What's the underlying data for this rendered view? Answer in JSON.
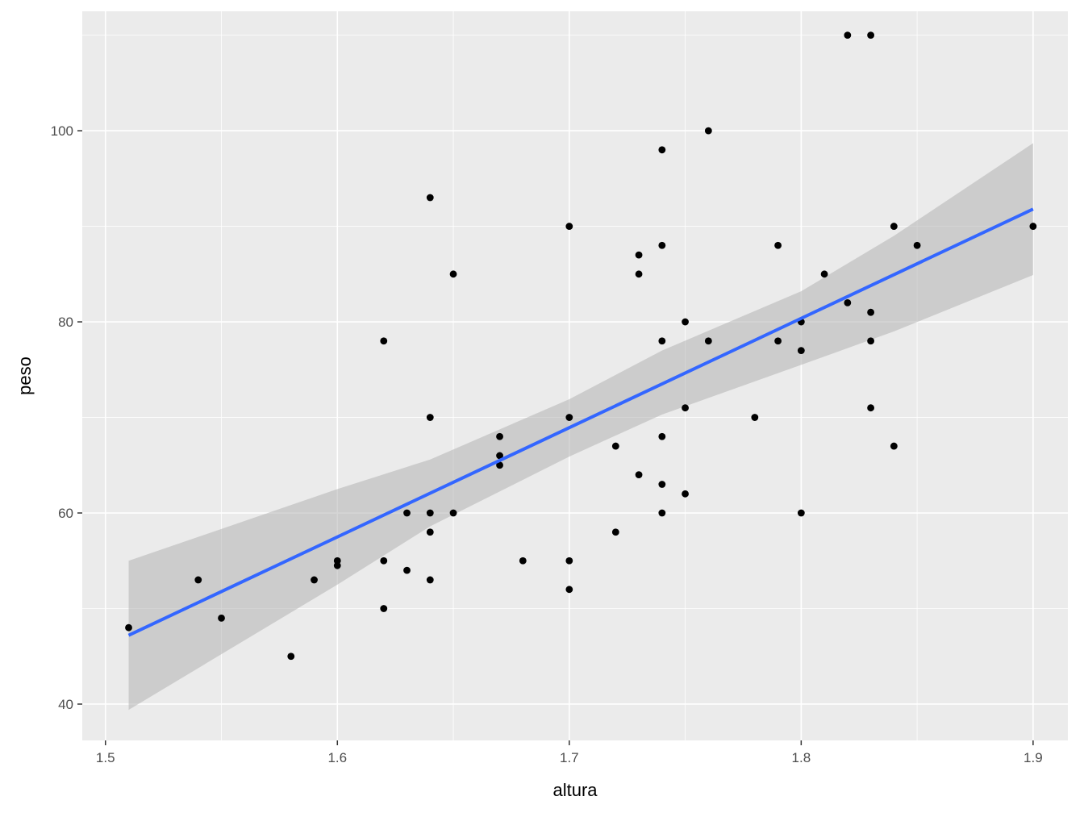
{
  "chart_data": {
    "type": "scatter",
    "xlabel": "altura",
    "ylabel": "peso",
    "xlim": [
      1.49,
      1.915
    ],
    "ylim": [
      36.2,
      112.5
    ],
    "x_ticks": [
      1.5,
      1.6,
      1.7,
      1.8,
      1.9
    ],
    "x_tick_labels": [
      "1.5",
      "1.6",
      "1.7",
      "1.8",
      "1.9"
    ],
    "y_ticks": [
      40,
      60,
      80,
      100
    ],
    "y_tick_labels": [
      "40",
      "60",
      "80",
      "100"
    ],
    "grid": true,
    "legend": "none",
    "colors": {
      "panel": "#ebebeb",
      "grid": "#ffffff",
      "points": "#000000",
      "fit_line": "#3366ff",
      "confidence_band": "#b3b3b3"
    },
    "points": [
      {
        "x": 1.51,
        "y": 48
      },
      {
        "x": 1.54,
        "y": 53
      },
      {
        "x": 1.55,
        "y": 49
      },
      {
        "x": 1.58,
        "y": 45
      },
      {
        "x": 1.59,
        "y": 53
      },
      {
        "x": 1.6,
        "y": 55
      },
      {
        "x": 1.6,
        "y": 54.5
      },
      {
        "x": 1.62,
        "y": 78
      },
      {
        "x": 1.62,
        "y": 55
      },
      {
        "x": 1.62,
        "y": 50
      },
      {
        "x": 1.63,
        "y": 60
      },
      {
        "x": 1.63,
        "y": 54
      },
      {
        "x": 1.64,
        "y": 93
      },
      {
        "x": 1.64,
        "y": 70
      },
      {
        "x": 1.64,
        "y": 60
      },
      {
        "x": 1.64,
        "y": 58
      },
      {
        "x": 1.64,
        "y": 53
      },
      {
        "x": 1.65,
        "y": 85
      },
      {
        "x": 1.65,
        "y": 60
      },
      {
        "x": 1.67,
        "y": 68
      },
      {
        "x": 1.67,
        "y": 66
      },
      {
        "x": 1.67,
        "y": 65
      },
      {
        "x": 1.68,
        "y": 55
      },
      {
        "x": 1.7,
        "y": 90
      },
      {
        "x": 1.7,
        "y": 70
      },
      {
        "x": 1.7,
        "y": 55
      },
      {
        "x": 1.7,
        "y": 52
      },
      {
        "x": 1.72,
        "y": 67
      },
      {
        "x": 1.72,
        "y": 58
      },
      {
        "x": 1.73,
        "y": 87
      },
      {
        "x": 1.73,
        "y": 85
      },
      {
        "x": 1.73,
        "y": 64
      },
      {
        "x": 1.74,
        "y": 98
      },
      {
        "x": 1.74,
        "y": 88
      },
      {
        "x": 1.74,
        "y": 78
      },
      {
        "x": 1.74,
        "y": 68
      },
      {
        "x": 1.74,
        "y": 63
      },
      {
        "x": 1.74,
        "y": 60
      },
      {
        "x": 1.75,
        "y": 80
      },
      {
        "x": 1.75,
        "y": 71
      },
      {
        "x": 1.75,
        "y": 62
      },
      {
        "x": 1.76,
        "y": 100
      },
      {
        "x": 1.76,
        "y": 78
      },
      {
        "x": 1.78,
        "y": 70
      },
      {
        "x": 1.79,
        "y": 88
      },
      {
        "x": 1.79,
        "y": 78
      },
      {
        "x": 1.8,
        "y": 80
      },
      {
        "x": 1.8,
        "y": 77
      },
      {
        "x": 1.8,
        "y": 60
      },
      {
        "x": 1.81,
        "y": 85
      },
      {
        "x": 1.82,
        "y": 110
      },
      {
        "x": 1.82,
        "y": 82
      },
      {
        "x": 1.83,
        "y": 110
      },
      {
        "x": 1.83,
        "y": 81
      },
      {
        "x": 1.83,
        "y": 78
      },
      {
        "x": 1.83,
        "y": 71
      },
      {
        "x": 1.84,
        "y": 90
      },
      {
        "x": 1.84,
        "y": 67
      },
      {
        "x": 1.85,
        "y": 88
      },
      {
        "x": 1.9,
        "y": 90
      }
    ],
    "fit_line": [
      {
        "x": 1.51,
        "y": 47.2
      },
      {
        "x": 1.9,
        "y": 91.8
      }
    ],
    "confidence_band": {
      "x": [
        1.51,
        1.6,
        1.64,
        1.7,
        1.74,
        1.8,
        1.84,
        1.9
      ],
      "lower": [
        39.4,
        52.5,
        58.6,
        65.9,
        70.3,
        75.5,
        79.0,
        84.9
      ],
      "upper": [
        55.0,
        62.5,
        65.6,
        71.9,
        77.0,
        83.2,
        89.0,
        98.7
      ]
    }
  }
}
